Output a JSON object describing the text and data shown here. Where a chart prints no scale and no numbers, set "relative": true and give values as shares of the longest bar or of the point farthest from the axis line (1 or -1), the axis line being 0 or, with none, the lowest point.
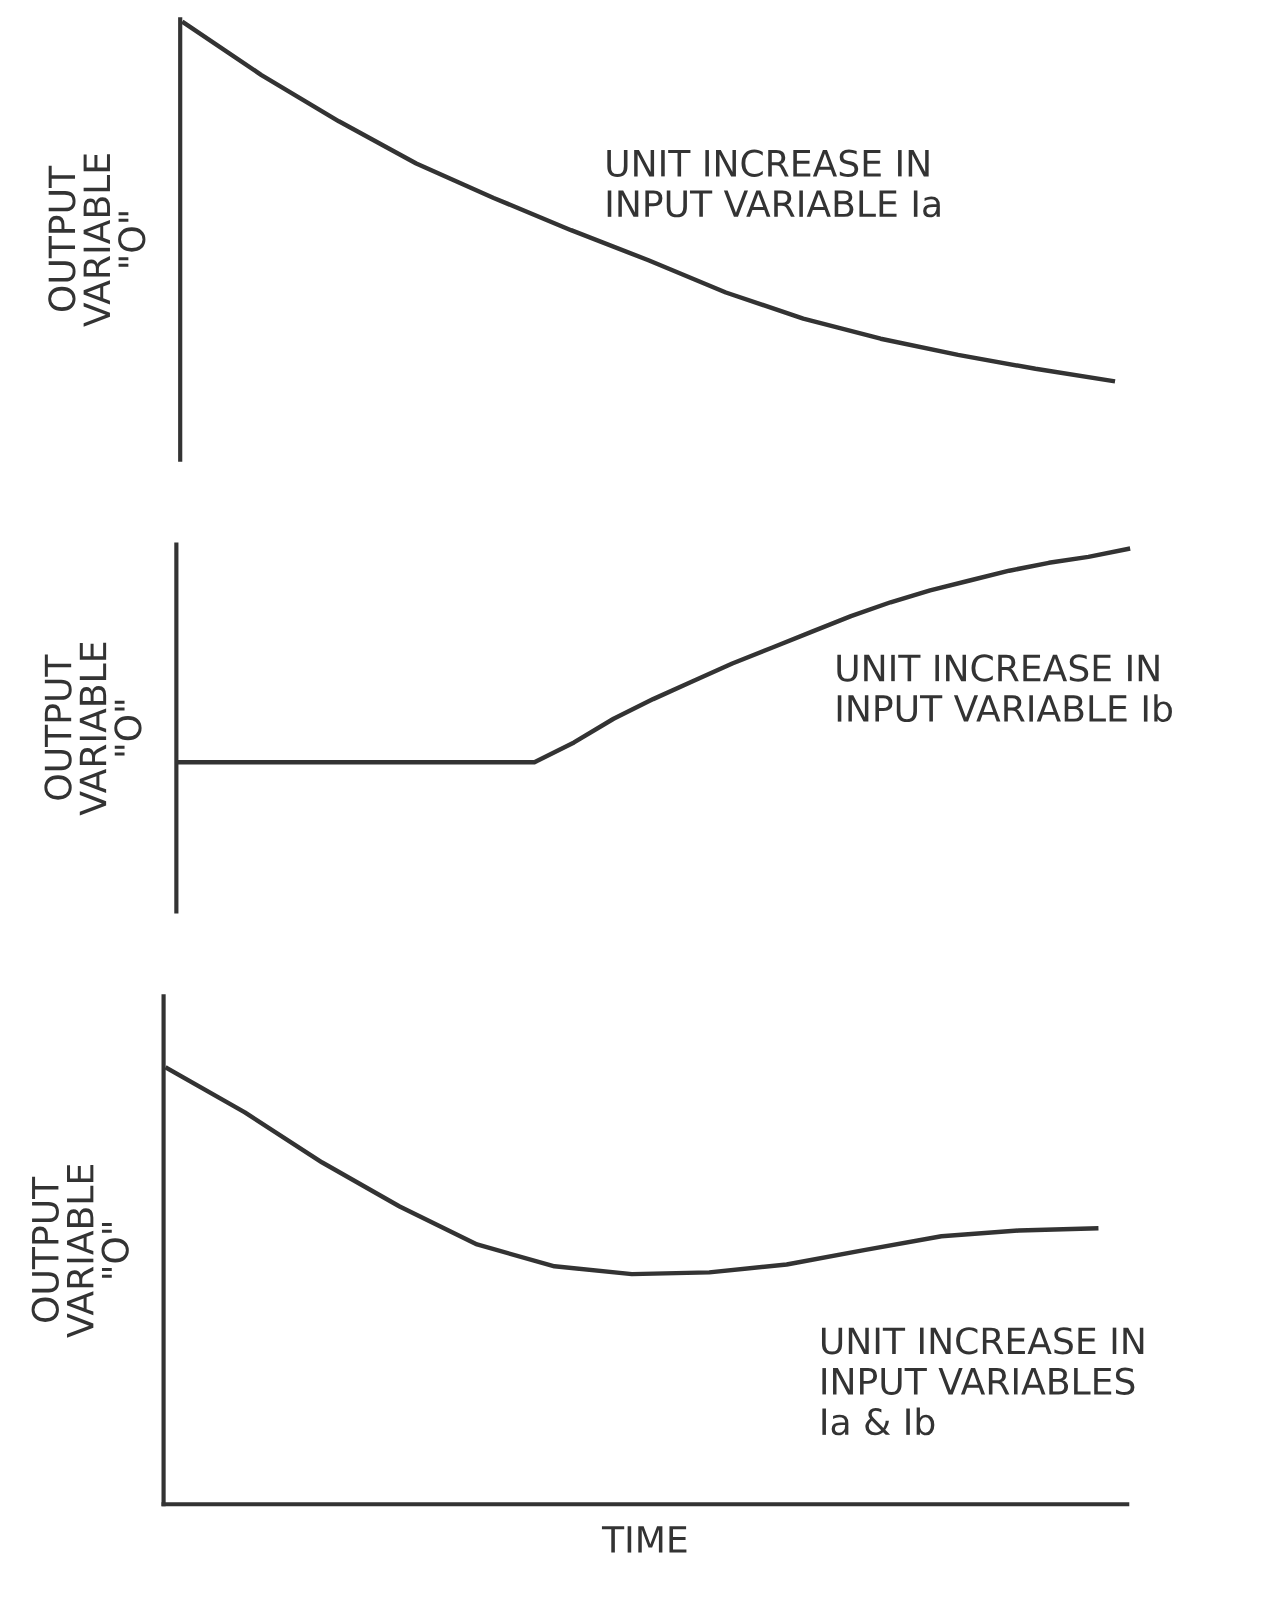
{
  "chart_data": [
    {
      "type": "line",
      "relative": true,
      "ylabel": "OUTPUT\nVARIABLE\n\"O\"",
      "annotations": [
        "UNIT INCREASE IN\nINPUT VARIABLE Ia"
      ],
      "categories": [
        null,
        null,
        null,
        null,
        null,
        null,
        null,
        null,
        null,
        null,
        null,
        null,
        null
      ],
      "series": [
        {
          "color": "#333333",
          "values": [
            1.0,
            0.854,
            0.725,
            0.607,
            0.511,
            0.421,
            0.337,
            0.247,
            0.174,
            0.118,
            0.073,
            0.034,
            0.0
          ]
        }
      ]
    },
    {
      "type": "line",
      "relative": true,
      "ylabel": "OUTPUT\nVARIABLE\n\"O\"",
      "annotations": [
        "UNIT INCREASE IN\nINPUT VARIABLE Ib"
      ],
      "categories": [
        null,
        null,
        null,
        null,
        null,
        null,
        null,
        null,
        null,
        null,
        null,
        null,
        null,
        null,
        null,
        null,
        null,
        null,
        null,
        null,
        null,
        null,
        null,
        null,
        null
      ],
      "series": [
        {
          "color": "#333333",
          "values": [
            0,
            0,
            0,
            0,
            0,
            0,
            0,
            0,
            0,
            0,
            0.093,
            0.204,
            0.296,
            0.38,
            0.463,
            0.537,
            0.611,
            0.685,
            0.75,
            0.806,
            0.852,
            0.898,
            0.935,
            0.963,
            1.0
          ]
        }
      ]
    },
    {
      "type": "line",
      "relative": true,
      "xlabel": "TIME",
      "ylabel": "OUTPUT\nVARIABLE\n\"O\"",
      "annotations": [
        "UNIT INCREASE IN\nINPUT VARIABLES\nIa & Ib"
      ],
      "categories": [
        null,
        null,
        null,
        null,
        null,
        null,
        null,
        null,
        null,
        null,
        null,
        null,
        null
      ],
      "series": [
        {
          "color": "#333333",
          "values": [
            1.0,
            0.899,
            0.784,
            0.683,
            0.596,
            0.546,
            0.528,
            0.532,
            0.55,
            0.583,
            0.615,
            0.628,
            0.633
          ]
        }
      ]
    }
  ]
}
